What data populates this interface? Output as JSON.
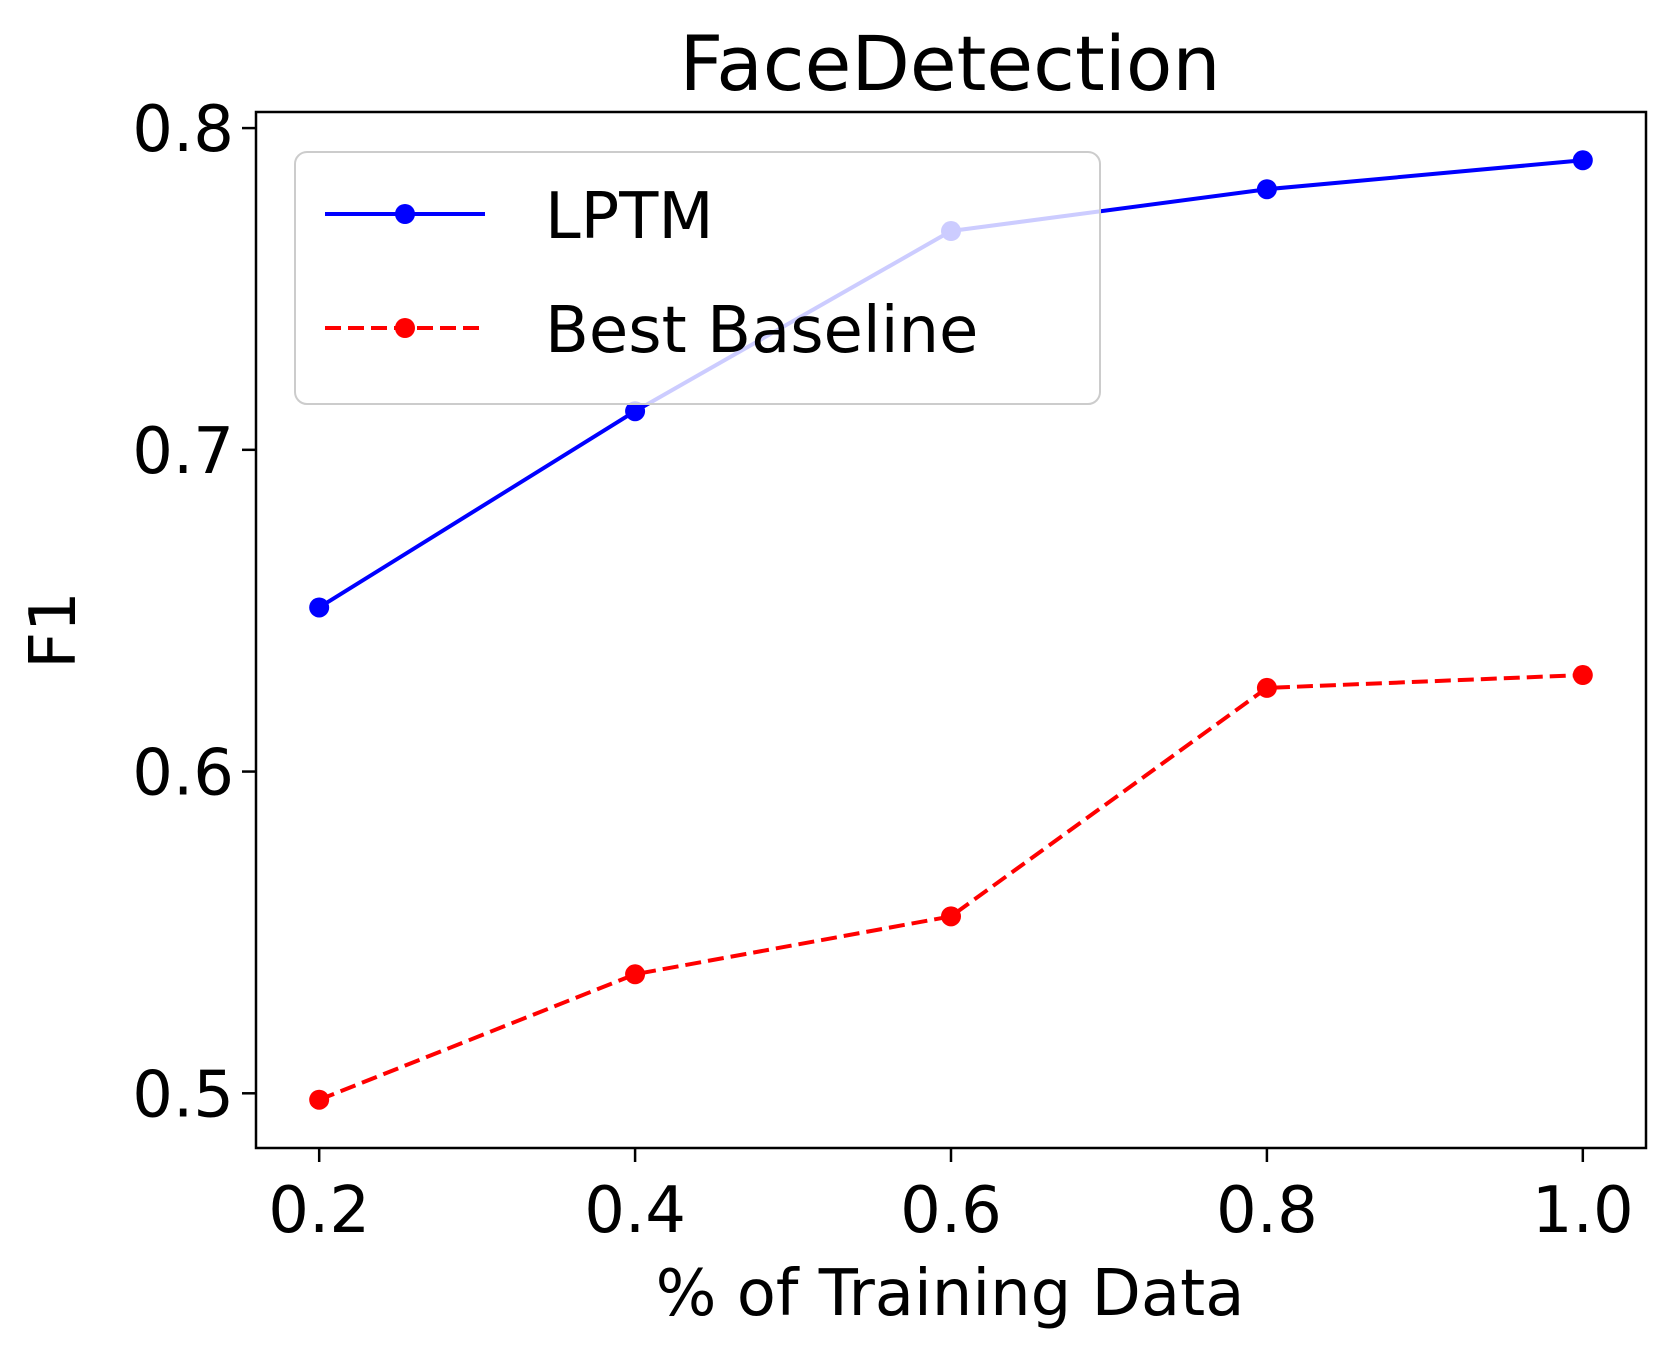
{
  "colors": {
    "lptm": "#0000ff",
    "baseline": "#ff0000",
    "axis": "#000000",
    "legend_border": "#cccccc",
    "background": "#ffffff"
  },
  "chart_data": {
    "type": "line",
    "title": "FaceDetection",
    "xlabel": "% of Training Data",
    "ylabel": "F1",
    "x": [
      0.2,
      0.4,
      0.6,
      0.8,
      1.0
    ],
    "xticks": [
      "0.2",
      "0.4",
      "0.6",
      "0.8",
      "1.0"
    ],
    "yticks": [
      "0.5",
      "0.6",
      "0.7",
      "0.8"
    ],
    "ytick_values": [
      0.5,
      0.6,
      0.7,
      0.8
    ],
    "xlim": [
      0.16,
      1.04
    ],
    "ylim": [
      0.483,
      0.805
    ],
    "grid": false,
    "legend_position": "upper-left",
    "series": [
      {
        "name": "LPTM",
        "style": "solid",
        "values": [
          0.651,
          0.712,
          0.768,
          0.781,
          0.79
        ]
      },
      {
        "name": "Best Baseline",
        "style": "dashed",
        "values": [
          0.498,
          0.537,
          0.555,
          0.626,
          0.63
        ]
      }
    ]
  }
}
